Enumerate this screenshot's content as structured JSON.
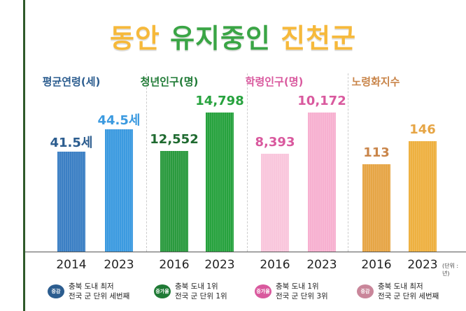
{
  "title": {
    "part1": "동안",
    "part2": "유지중인",
    "part3": "진천군"
  },
  "unit_label": "(단위 : 년)",
  "chart_data": [
    {
      "type": "bar",
      "title": "평균연령(세)",
      "categories": [
        "2014",
        "2023"
      ],
      "values": [
        41.5,
        44.5
      ],
      "labels": [
        "41.5세",
        "44.5세"
      ],
      "colors": [
        "#3b7fc4",
        "#3b9ae0"
      ],
      "title_color": "#2c5d8f",
      "label_colors": [
        "#2c5d8f",
        "#3b9ae0"
      ],
      "note": {
        "badge": "증감",
        "line1": "충북 도내 최저",
        "line2": "전국 군 단위 세번째",
        "badge_color": "#2c5d8f"
      }
    },
    {
      "type": "bar",
      "title": "청년인구(명)",
      "categories": [
        "2016",
        "2023"
      ],
      "values": [
        12552,
        14798
      ],
      "labels": [
        "12,552",
        "14,798"
      ],
      "colors": [
        "#2a9a3e",
        "#27a23e"
      ],
      "title_color": "#1f7a35",
      "label_colors": [
        "#1f6a30",
        "#27a23e"
      ],
      "note": {
        "badge": "증가율",
        "line1": "충북 도내 1위",
        "line2": "전국 군 단위 1위",
        "badge_color": "#1f7a35"
      }
    },
    {
      "type": "bar",
      "title": "학령인구(명)",
      "categories": [
        "2016",
        "2023"
      ],
      "values": [
        8393,
        10172
      ],
      "labels": [
        "8,393",
        "10,172"
      ],
      "colors": [
        "#f9c6dc",
        "#f7b0d0"
      ],
      "title_color": "#d9599e",
      "label_colors": [
        "#d9599e",
        "#d9599e"
      ],
      "note": {
        "badge": "증가율",
        "line1": "충북 도내 1위",
        "line2": "전국 군 단위 3위",
        "badge_color": "#d9599e"
      }
    },
    {
      "type": "bar",
      "title": "노령화지수",
      "categories": [
        "2016",
        "2023"
      ],
      "values": [
        113,
        146
      ],
      "labels": [
        "113",
        "146"
      ],
      "colors": [
        "#e6a545",
        "#eeb040"
      ],
      "title_color": "#c9854a",
      "label_colors": [
        "#c9854a",
        "#e6a545"
      ],
      "note": {
        "badge": "증감",
        "line1": "충북 도내 최저",
        "line2": "전국 군 단위 세번째",
        "badge_color": "#c9869a"
      }
    }
  ]
}
